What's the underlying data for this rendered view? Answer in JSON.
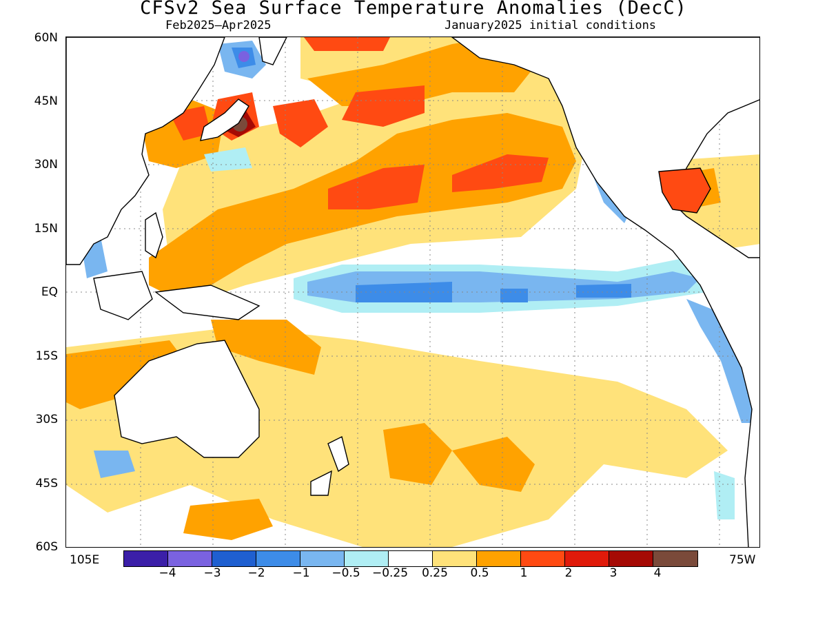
{
  "title": "CFSv2 Sea Surface Temperature Anomalies (DecC)",
  "subtitle_left": "Feb2025–Apr2025",
  "subtitle_right": "January2025 initial conditions",
  "lat_labels": [
    "60N",
    "45N",
    "30N",
    "15N",
    "EQ",
    "15S",
    "30S",
    "45S",
    "60S"
  ],
  "lon_labels": [
    "105E",
    "75W"
  ],
  "colorbar": {
    "colors": [
      "#3b1fa8",
      "#7a62e0",
      "#1f5fd0",
      "#3d8ce8",
      "#79b6f0",
      "#b0eef4",
      "#ffffff",
      "#ffe27a",
      "#ffa200",
      "#ff4a12",
      "#e01a0a",
      "#a50a05",
      "#7a4a3a"
    ],
    "labels": [
      "−4",
      "−3",
      "−2",
      "−1",
      "−0.5",
      "−0.25",
      "0.25",
      "0.5",
      "1",
      "2",
      "3",
      "4"
    ]
  },
  "palette": {
    "land": "#ffffff",
    "coast": "#000000"
  }
}
